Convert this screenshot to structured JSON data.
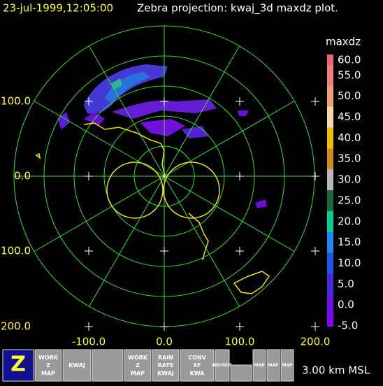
{
  "header": {
    "time": "23-jul-1999,12:05:00",
    "title": "Zebra projection: kwaj_3d maxdz plot."
  },
  "colorbar": {
    "title": "maxdz",
    "labels": [
      "60.0",
      "55.0",
      "50.0",
      "45.0",
      "40.0",
      "35.0",
      "30.0",
      "25.0",
      "20.0",
      "15.0",
      "10.0",
      "5.0",
      "0.0",
      "-5.0"
    ]
  },
  "axes": {
    "y_labels": [
      "100.0",
      "0.0",
      "100.0",
      "200.0"
    ],
    "x_labels": [
      "-100.0",
      "0.0",
      "100.0",
      "200.0"
    ]
  },
  "toolbar": {
    "buttons": [
      {
        "lines": [
          "Z"
        ]
      },
      {
        "lines": [
          "WORK",
          "Z",
          "MAP"
        ]
      },
      {
        "lines": [
          "KWAJ"
        ]
      },
      {
        "lines": []
      },
      {
        "lines": [
          "WORK",
          "Z",
          "MAP"
        ]
      },
      {
        "lines": [
          "RAIN",
          "RATE",
          "KWAJ"
        ]
      },
      {
        "lines": [
          "CONV",
          "SF",
          "KWA"
        ]
      },
      {
        "lines": [
          "BOUNDS"
        ]
      },
      {
        "lines": []
      },
      {
        "lines": [
          "MAP"
        ]
      },
      {
        "lines": [
          "MAP"
        ]
      },
      {
        "lines": [
          "MAP"
        ]
      }
    ]
  },
  "footer": {
    "altitude": "3.00 km MSL"
  }
}
